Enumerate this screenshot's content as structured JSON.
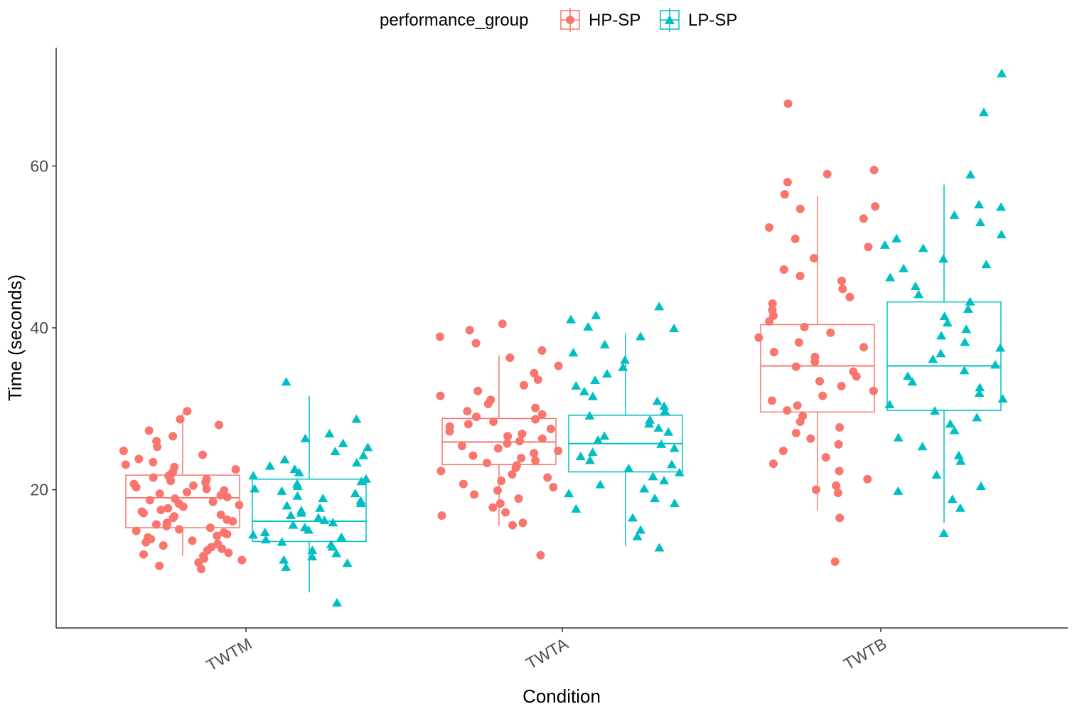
{
  "chart_data": {
    "type": "boxplot-jitter",
    "xlabel": "Condition",
    "ylabel": "Time (seconds)",
    "categories": [
      "TWTM",
      "TWTA",
      "TWTB"
    ],
    "yticks": [
      20,
      40,
      60
    ],
    "ylim": [
      4,
      74
    ],
    "grid": false,
    "legend": {
      "title": "performance_group",
      "position": "top",
      "entries": [
        {
          "name": "HP-SP",
          "color": "#f8766d",
          "shape": "circle"
        },
        {
          "name": "LP-SP",
          "color": "#00bfc4",
          "shape": "triangle"
        }
      ]
    },
    "series": [
      {
        "name": "HP-SP",
        "color": "#f8766d",
        "shape": "circle",
        "boxes": [
          {
            "category": "TWTM",
            "whisker_low": 11.8,
            "q1": 15.3,
            "median": 19.0,
            "q3": 21.8,
            "whisker_high": 29.5
          },
          {
            "category": "TWTA",
            "whisker_low": 15.5,
            "q1": 23.1,
            "median": 25.9,
            "q3": 28.8,
            "whisker_high": 36.6
          },
          {
            "category": "TWTB",
            "whisker_low": 17.5,
            "q1": 29.6,
            "median": 35.3,
            "q3": 40.4,
            "whisker_high": 56.3
          }
        ],
        "points": {
          "TWTM": [
            10.2,
            10.6,
            11.0,
            11.3,
            11.5,
            11.8,
            12.0,
            12.2,
            12.5,
            12.7,
            12.9,
            13.1,
            13.3,
            13.5,
            13.7,
            13.9,
            14.1,
            14.3,
            14.5,
            14.7,
            14.9,
            15.1,
            15.3,
            15.5,
            15.7,
            15.9,
            16.1,
            16.3,
            16.5,
            16.7,
            16.9,
            17.1,
            17.3,
            17.5,
            17.7,
            17.9,
            18.1,
            18.3,
            18.5,
            18.7,
            18.9,
            19.1,
            19.3,
            19.5,
            19.7,
            19.9,
            20.1,
            20.3,
            20.5,
            20.7,
            20.9,
            21.1,
            21.3,
            21.5,
            21.7,
            21.9,
            22.2,
            22.5,
            22.8,
            23.1,
            23.4,
            23.8,
            24.3,
            24.8,
            25.3,
            26.0,
            26.6,
            27.3,
            28.0,
            28.7,
            29.7
          ],
          "TWTA": [
            11.9,
            15.6,
            15.9,
            16.8,
            17.2,
            17.8,
            18.3,
            18.9,
            19.4,
            19.9,
            20.3,
            20.7,
            21.1,
            21.5,
            21.9,
            22.3,
            22.7,
            23.0,
            23.3,
            23.6,
            23.9,
            24.2,
            24.5,
            24.8,
            25.1,
            25.4,
            25.7,
            26.0,
            26.3,
            26.6,
            26.9,
            27.2,
            27.5,
            27.8,
            28.1,
            28.4,
            28.7,
            29.0,
            29.3,
            29.7,
            30.1,
            30.6,
            31.1,
            31.6,
            32.2,
            32.9,
            33.6,
            34.4,
            35.3,
            36.3,
            37.2,
            38.1,
            38.9,
            39.7,
            40.5
          ],
          "TWTB": [
            11.1,
            16.5,
            19.6,
            20.0,
            20.5,
            21.3,
            22.3,
            23.2,
            24.0,
            24.8,
            25.6,
            26.3,
            27.0,
            27.7,
            28.4,
            29.1,
            29.8,
            30.4,
            31.0,
            31.6,
            32.2,
            32.8,
            33.4,
            34.0,
            34.6,
            35.2,
            35.8,
            36.4,
            37.0,
            37.6,
            38.2,
            38.8,
            39.4,
            40.1,
            40.8,
            41.5,
            42.2,
            43.0,
            43.8,
            44.8,
            45.8,
            46.4,
            47.2,
            48.6,
            50.0,
            51.0,
            52.4,
            53.5,
            54.7,
            55.0,
            56.5,
            58.0,
            59.0,
            59.5,
            67.7
          ]
        }
      },
      {
        "name": "LP-SP",
        "color": "#00bfc4",
        "shape": "triangle",
        "boxes": [
          {
            "category": "TWTM",
            "whisker_low": 7.3,
            "q1": 13.6,
            "median": 16.1,
            "q3": 21.3,
            "whisker_high": 31.6
          },
          {
            "category": "TWTA",
            "whisker_low": 13.0,
            "q1": 22.2,
            "median": 25.7,
            "q3": 29.2,
            "whisker_high": 39.3
          },
          {
            "category": "TWTB",
            "whisker_low": 15.9,
            "q1": 29.8,
            "median": 35.3,
            "q3": 43.2,
            "whisker_high": 57.7
          }
        ],
        "points": {
          "TWTM": [
            6.0,
            10.4,
            10.9,
            11.3,
            11.7,
            12.1,
            12.5,
            12.9,
            13.2,
            13.5,
            13.8,
            14.1,
            14.4,
            14.7,
            15.0,
            15.3,
            15.6,
            15.9,
            16.2,
            16.5,
            16.8,
            17.1,
            17.4,
            17.7,
            18.0,
            18.3,
            18.6,
            18.9,
            19.2,
            19.5,
            19.8,
            20.1,
            20.4,
            20.7,
            21.0,
            21.3,
            21.7,
            22.1,
            22.5,
            22.9,
            23.3,
            23.7,
            24.2,
            24.7,
            25.2,
            25.7,
            26.3,
            26.9,
            28.7,
            33.3
          ],
          "TWTA": [
            12.8,
            14.2,
            15.0,
            16.5,
            17.6,
            18.3,
            18.9,
            19.5,
            20.1,
            20.6,
            21.1,
            21.6,
            22.1,
            22.6,
            23.1,
            23.6,
            24.1,
            24.6,
            25.1,
            25.6,
            26.1,
            26.6,
            27.1,
            27.6,
            28.1,
            28.6,
            29.1,
            29.7,
            30.3,
            30.9,
            31.5,
            32.1,
            32.8,
            33.5,
            34.3,
            35.1,
            36.0,
            36.9,
            37.9,
            38.9,
            39.9,
            40.1,
            41.0,
            41.5,
            42.6
          ],
          "TWTB": [
            14.6,
            17.7,
            18.8,
            19.8,
            20.4,
            21.8,
            23.5,
            24.2,
            25.3,
            26.4,
            27.3,
            28.1,
            28.9,
            29.7,
            30.5,
            31.2,
            31.9,
            32.6,
            33.3,
            34.0,
            34.7,
            35.4,
            36.1,
            36.8,
            37.5,
            38.2,
            39.0,
            39.8,
            40.6,
            41.4,
            42.3,
            43.2,
            44.1,
            45.1,
            46.2,
            47.3,
            47.8,
            48.5,
            49.8,
            50.2,
            51.0,
            51.5,
            53.0,
            53.9,
            54.9,
            55.2,
            58.9,
            66.6,
            71.4
          ]
        }
      }
    ]
  }
}
